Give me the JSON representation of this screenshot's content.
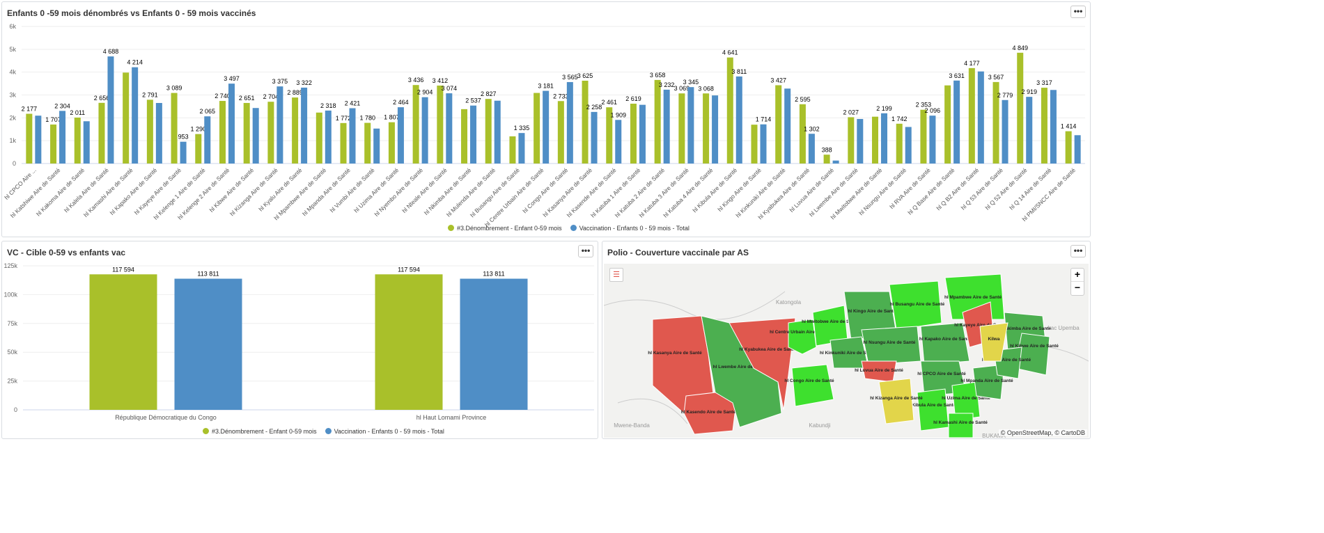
{
  "colors": {
    "green": "#a9c02a",
    "blue": "#4f8ec6",
    "red": "#e0584e",
    "darkgreen": "#4caf50",
    "lightgreen": "#3ee02e",
    "yellow": "#e2d54a"
  },
  "top_panel": {
    "title": "Enfants 0 -59 mois dénombrés vs Enfants 0 - 59 mois vaccinés",
    "menu": "•••"
  },
  "left_panel": {
    "title": "VC - Cible 0-59 vs enfants vac",
    "menu": "•••"
  },
  "map_panel": {
    "title": "Polio - Couverture vaccinale par AS",
    "menu": "•••",
    "zoom_in": "+",
    "zoom_out": "−",
    "attribution": "© OpenStreetMap, © CartoDB",
    "places": [
      "Katongola",
      "Kabundji",
      "Mwene-Banda",
      "Lac Upemba",
      "BUKAMA"
    ],
    "areas": [
      {
        "label": "hl Kasanya Aire de Santé",
        "status": "red"
      },
      {
        "label": "hl Kasendo Aire de Santé",
        "status": "red"
      },
      {
        "label": "hl Lwembe Aire de Santé",
        "status": "darkgreen"
      },
      {
        "label": "hl Kyabukea Aire de Santé",
        "status": "red"
      },
      {
        "label": "hl Centre Urbain Aire de Santé",
        "status": "lightgreen"
      },
      {
        "label": "hl Mwitobwe Aire de Santé",
        "status": "lightgreen"
      },
      {
        "label": "hl Kingo Aire de Santé",
        "status": "darkgreen"
      },
      {
        "label": "hl Busangu Aire de Santé",
        "status": "lightgreen"
      },
      {
        "label": "hl Mpambwe Aire de Santé",
        "status": "lightgreen"
      },
      {
        "label": "hl Kinkuniki Aire de Santé",
        "status": "darkgreen"
      },
      {
        "label": "hl Nsungu Aire de Santé",
        "status": "darkgreen"
      },
      {
        "label": "hl Kapako Aire de Santé",
        "status": "darkgreen"
      },
      {
        "label": "hl Kayeye Aire de Santé",
        "status": "red"
      },
      {
        "label": "hl Nkimba Aire de Santé",
        "status": "darkgreen"
      },
      {
        "label": "hl Kibwe Aire de Santé",
        "status": "darkgreen"
      },
      {
        "label": "hl Luvua Aire de Santé",
        "status": "red"
      },
      {
        "label": "hl Congo Aire de Santé",
        "status": "lightgreen"
      },
      {
        "label": "hl CPCO Aire de Santé",
        "status": "darkgreen"
      },
      {
        "label": "hl Kibula Aire de Santé",
        "status": "lightgreen"
      },
      {
        "label": "hl Uzima Aire de Santé",
        "status": "lightgreen"
      },
      {
        "label": "hl Mpanda Aire de Santé",
        "status": "darkgreen"
      },
      {
        "label": "hl Kamashi Aire de Santé",
        "status": "lightgreen"
      },
      {
        "label": "hl Nteale Aire de Santé",
        "status": "darkgreen"
      },
      {
        "label": "hl Kizanga Aire de Santé",
        "status": "lightgreen"
      },
      {
        "label": "Kilwa",
        "status": "yellow"
      }
    ]
  },
  "chart_data": [
    {
      "type": "bar",
      "title": "Enfants 0 -59 mois dénombrés vs Enfants 0 - 59 mois vaccinés",
      "ylim": [
        0,
        6000
      ],
      "yticks": [
        "0",
        "1k",
        "2k",
        "3k",
        "4k",
        "5k",
        "6k"
      ],
      "categories": [
        "hl CPCO Aire ...",
        "hl Katshiwe Aire de Santé",
        "hl Kakoma Aire de Santé",
        "hl Kalela Aire de Santé",
        "hl Kamashi Aire de Santé",
        "hl Kapako Aire de Santé",
        "hl Kayeye Aire de Santé",
        "hl Kelenge 1 Aire de Santé",
        "hl Kelenge 2 Aire de Santé",
        "hl Kibwe Aire de Santé",
        "hl Kizanga Aire de Santé",
        "hl Kyalu Aire de Santé",
        "hl Mpambwe Aire de Santé",
        "hl Mpanda Aire de Santé",
        "hl Vumbi Aire de Santé",
        "hl Uzima Aire de Santé",
        "hl Nyembo Aire de Santé",
        "hl Nteale Aire de Santé",
        "hl Nkimba Aire de Santé",
        "hl Mulenda Aire de Santé",
        "hl Busangu Aire de Santé",
        "hl Centre Urbain Aire de Santé",
        "hl Congo Aire de Santé",
        "hl Kasanya Aire de Santé",
        "hl Kasende Aire de Santé",
        "hl Katuba 1 Aire de Santé",
        "hl Katuba 2 Aire de Santé",
        "hl Katuba 3 Aire de Santé",
        "hl Katuba 4 Aire de Santé",
        "hl Kibula Aire de Santé",
        "hl Kingo Aire de Santé",
        "hl Kinkuniki Aire de Santé",
        "hl Kyabukea Aire de Santé",
        "hl Luvua Aire de Santé",
        "hl Lwembe Aire de Santé",
        "hl Mwitobwe Aire de Santé",
        "hl Nsungu Aire de Santé",
        "hl RVA Aire de Santé",
        "hl Q Base Aire de Santé",
        "hl Q B2 Aire de Santé",
        "hl Q 53 Aire de Santé",
        "hl Q 52 Aire de Santé",
        "hl Q 14 Aire de Santé",
        "hl PMI/SNCC Aire de Santé"
      ],
      "series": [
        {
          "name": "#3.Dénombrement - Enfant 0-59 mois",
          "values": [
            2177,
            1707,
            2011,
            2656,
            3980,
            2791,
            3089,
            1290,
            2740,
            2651,
            2704,
            2889,
            2230,
            1772,
            1780,
            1807,
            3436,
            3412,
            2380,
            2827,
            1190,
            3090,
            2733,
            3625,
            2461,
            2619,
            3658,
            3069,
            3068,
            4641,
            1700,
            3427,
            2595,
            388,
            2027,
            2050,
            1742,
            2353,
            3420,
            4177,
            3567,
            4849,
            3317,
            1414
          ],
          "labels": [
            "2 177",
            "1 707",
            "2 011",
            "2 656",
            "",
            "2 791",
            "3 089",
            "1 290",
            "2 740",
            "2 651",
            "2 704",
            "2 889",
            "",
            "1 772",
            "1 780",
            "1 807",
            "3 436",
            "3 412",
            "",
            "2 827",
            "",
            "",
            "2 733",
            "3 625",
            "2 461",
            "2 619",
            "3 658",
            "3 069",
            "3 068",
            "4 641",
            "",
            "3 427",
            "2 595",
            "388",
            "2 027",
            "",
            "1 742",
            "2 353",
            "",
            "4 177",
            "3 567",
            "4 849",
            "3 317",
            "1 414"
          ]
        },
        {
          "name": "Vaccination - Enfants 0 - 59 mois - Total",
          "values": [
            2095,
            2304,
            1850,
            4688,
            4214,
            2650,
            953,
            2065,
            3497,
            2430,
            3375,
            3322,
            2318,
            2421,
            1530,
            2464,
            2904,
            3074,
            2537,
            2750,
            1335,
            3181,
            3565,
            2258,
            1909,
            2570,
            3232,
            3345,
            2980,
            3811,
            1714,
            3280,
            1302,
            130,
            1950,
            2199,
            1600,
            2096,
            3631,
            4030,
            2779,
            2919,
            3220,
            1240
          ],
          "labels": [
            "",
            "2 304",
            "",
            "4 688",
            "4 214",
            "",
            "953",
            "2 065",
            "3 497",
            "",
            "3 375",
            "3 322",
            "2 318",
            "2 421",
            "",
            "2 464",
            "2 904",
            "3 074",
            "2 537",
            "",
            "1 335",
            "3 181",
            "3 565",
            "2 258",
            "1 909",
            "",
            "3 232",
            "3 345",
            "",
            "3 811",
            "1 714",
            "",
            "1 302",
            "",
            "",
            "2 199",
            "",
            "2 096",
            "3 631",
            "",
            "2 779",
            "2 919",
            "",
            ""
          ]
        }
      ]
    },
    {
      "type": "bar",
      "title": "VC - Cible 0-59 vs enfants vac",
      "ylim": [
        0,
        125000
      ],
      "yticks": [
        "0",
        "25k",
        "50k",
        "75k",
        "100k",
        "125k"
      ],
      "categories": [
        "République Démocratique du Congo",
        "hl Haut Lomami Province"
      ],
      "series": [
        {
          "name": "#3.Dénombrement - Enfant 0-59 mois",
          "values": [
            117594,
            117594
          ],
          "labels": [
            "117 594",
            "117 594"
          ]
        },
        {
          "name": "Vaccination - Enfants 0 - 59 mois - Total",
          "values": [
            113811,
            113811
          ],
          "labels": [
            "113 811",
            "113 811"
          ]
        }
      ]
    }
  ]
}
